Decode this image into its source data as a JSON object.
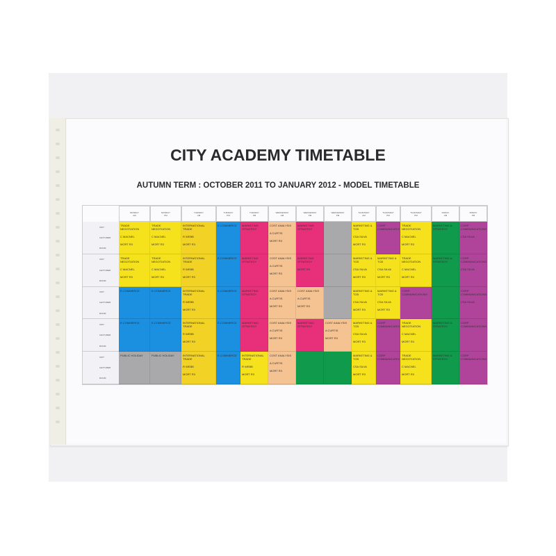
{
  "document": {
    "title": "CITY ACADEMY TIMETABLE",
    "subtitle": "AUTUMN TERM : OCTOBER 2011 TO JANUARY 2012 - MODEL TIMETABLE"
  },
  "colors": {
    "yellow": "#f6e21c",
    "blue": "#1b8fe0",
    "pink": "#e8307a",
    "peach": "#f5c392",
    "grey": "#a9a9ab",
    "green": "#0f9a4c",
    "purple": "#b0449a",
    "yellow2": "#f2d224"
  },
  "headers": [
    {
      "day": "MONDAY",
      "session": "AM"
    },
    {
      "day": "MONDAY",
      "session": "PM"
    },
    {
      "day": "TUESDAY",
      "session": "AM"
    },
    {
      "day": "TUESDAY",
      "session": "PM"
    },
    {
      "day": "TUESDAY",
      "session": "PM"
    },
    {
      "day": "WEDNESDAY",
      "session": "AM"
    },
    {
      "day": "WEDNESDAY",
      "session": "PM"
    },
    {
      "day": "WEDNESDAY",
      "session": "PM"
    },
    {
      "day": "THURSDAY",
      "session": "AM"
    },
    {
      "day": "THURSDAY",
      "session": "PM"
    },
    {
      "day": "THURSDAY",
      "session": "PM"
    },
    {
      "day": "FRIDAY",
      "session": "AM"
    },
    {
      "day": "FRIDAY",
      "session": "PM"
    }
  ],
  "row_labels": {
    "unit": "UNIT",
    "lecturer": "LECTURER",
    "room": "ROOM"
  },
  "rows": [
    {
      "cells": [
        {
          "c": "yellow",
          "s": "TRADE NEGOTIATION",
          "l": "C MACNEL",
          "r": "MORT R3"
        },
        {
          "c": "yellow",
          "s": "TRADE NEGOTIATION",
          "l": "C MACNEL",
          "r": "MORT R3"
        },
        {
          "c": "yellow2",
          "s": "INTERNATIONAL TRADE",
          "l": "R WEBB",
          "r": "MORT R3"
        },
        {
          "c": "blue",
          "s": "E-COMMERCE",
          "l": "",
          "r": ""
        },
        {
          "c": "pink",
          "s": "MARKETING STRATEGY",
          "l": "",
          "r": ""
        },
        {
          "c": "peach",
          "s": "COST ANALYSIS",
          "l": "A CURTIS",
          "r": "MORT R3"
        },
        {
          "c": "pink",
          "s": "MARKETING STRATEGY",
          "l": "",
          "r": ""
        },
        {
          "c": "grey",
          "s": "",
          "l": "",
          "r": ""
        },
        {
          "c": "yellow",
          "s": "MARKETING & TCB",
          "l": "CSA SILVA",
          "r": "MORT R3"
        },
        {
          "c": "purple",
          "s": "CORP COMMUNICATIONS",
          "l": "",
          "r": ""
        },
        {
          "c": "yellow",
          "s": "TRADE NEGOTIATION",
          "l": "C MACNEL",
          "r": "MORT R3"
        },
        {
          "c": "green",
          "s": "MARKETING & STRATEGY",
          "l": "",
          "r": ""
        },
        {
          "c": "purple",
          "s": "CORP COMMUNICATIONS",
          "l": "CSA SILVA",
          "r": ""
        }
      ]
    },
    {
      "cells": [
        {
          "c": "yellow",
          "s": "TRADE NEGOTIATION",
          "l": "C MACNEL",
          "r": "MORT R3"
        },
        {
          "c": "yellow",
          "s": "TRADE NEGOTIATION",
          "l": "C MACNEL",
          "r": "MORT R3"
        },
        {
          "c": "yellow2",
          "s": "INTERNATIONAL TRADE",
          "l": "R WEBB",
          "r": "MORT R3"
        },
        {
          "c": "blue",
          "s": "E-COMMERCE",
          "l": "",
          "r": ""
        },
        {
          "c": "pink",
          "s": "MARKETING STRATEGY",
          "l": "",
          "r": ""
        },
        {
          "c": "peach",
          "s": "COST ANALYSIS",
          "l": "A CURTIS",
          "r": "MORT R3"
        },
        {
          "c": "pink",
          "s": "MARKETING STRATEGY",
          "l": "",
          "r": "MORT R3"
        },
        {
          "c": "grey",
          "s": "",
          "l": "",
          "r": ""
        },
        {
          "c": "yellow",
          "s": "MARKETING & TCB",
          "l": "CSA SILVA",
          "r": "MORT R3"
        },
        {
          "c": "yellow",
          "s": "MARKETING & TCB",
          "l": "CSA SILVA",
          "r": "MORT R3"
        },
        {
          "c": "yellow",
          "s": "TRADE NEGOTIATION",
          "l": "C MACNEL",
          "r": "MORT R3"
        },
        {
          "c": "green",
          "s": "MARKETING & STRATEGY",
          "l": "",
          "r": ""
        },
        {
          "c": "purple",
          "s": "CORP COMMUNICATIONS",
          "l": "CSA SILVA",
          "r": ""
        }
      ]
    },
    {
      "cells": [
        {
          "c": "blue",
          "s": "E-COMMERCE",
          "l": "",
          "r": ""
        },
        {
          "c": "blue",
          "s": "E-COMMERCE",
          "l": "",
          "r": ""
        },
        {
          "c": "yellow2",
          "s": "INTERNATIONAL TRADE",
          "l": "R WEBB",
          "r": "MORT R3"
        },
        {
          "c": "blue",
          "s": "E-COMMERCE",
          "l": "",
          "r": ""
        },
        {
          "c": "pink",
          "s": "MARKETING STRATEGY",
          "l": "",
          "r": ""
        },
        {
          "c": "peach",
          "s": "COST ANALYSIS",
          "l": "A CURTIS",
          "r": "MORT R3"
        },
        {
          "c": "peach",
          "s": "COST ANALYSIS",
          "l": "A CURTIS",
          "r": "MORT R3"
        },
        {
          "c": "grey",
          "s": "",
          "l": "",
          "r": ""
        },
        {
          "c": "yellow",
          "s": "MARKETING & TCB",
          "l": "CSA SILVA",
          "r": "MORT R3"
        },
        {
          "c": "yellow",
          "s": "MARKETING & TCB",
          "l": "CSA SILVA",
          "r": "MORT R3"
        },
        {
          "c": "purple",
          "s": "CORP COMMUNICATIONS",
          "l": "",
          "r": ""
        },
        {
          "c": "green",
          "s": "",
          "l": "",
          "r": ""
        },
        {
          "c": "purple",
          "s": "CORP COMMUNICATIONS",
          "l": "CSA SILVA",
          "r": ""
        }
      ]
    },
    {
      "cells": [
        {
          "c": "blue",
          "s": "E-COMMERCE",
          "l": "",
          "r": ""
        },
        {
          "c": "blue",
          "s": "E-COMMERCE",
          "l": "",
          "r": ""
        },
        {
          "c": "yellow2",
          "s": "INTERNATIONAL TRADE",
          "l": "R WEBB",
          "r": "MORT R3"
        },
        {
          "c": "blue",
          "s": "E-COMMERCE",
          "l": "",
          "r": ""
        },
        {
          "c": "pink",
          "s": "MARKETING STRATEGY",
          "l": "",
          "r": ""
        },
        {
          "c": "peach",
          "s": "COST ANALYSIS",
          "l": "A CURTIS",
          "r": "MORT R3"
        },
        {
          "c": "pink",
          "s": "MARKETING STRATEGY",
          "l": "",
          "r": ""
        },
        {
          "c": "peach",
          "s": "COST ANALYSIS",
          "l": "A CURTIS",
          "r": "MORT R3"
        },
        {
          "c": "yellow",
          "s": "MARKETING & TCB",
          "l": "CSA SILVA",
          "r": "MORT R3"
        },
        {
          "c": "purple",
          "s": "CORP COMMUNICATIONS",
          "l": "",
          "r": ""
        },
        {
          "c": "yellow",
          "s": "TRADE NEGOTIATION",
          "l": "C MACNEL",
          "r": "MORT R3"
        },
        {
          "c": "green",
          "s": "MARKETING & STRATEGY",
          "l": "",
          "r": ""
        },
        {
          "c": "purple",
          "s": "CORP COMMUNICATIONS",
          "l": "",
          "r": ""
        }
      ]
    },
    {
      "cells": [
        {
          "c": "grey",
          "s": "PUBLIC HOLIDAY",
          "l": "",
          "r": ""
        },
        {
          "c": "grey",
          "s": "PUBLIC HOLIDAY",
          "l": "",
          "r": ""
        },
        {
          "c": "yellow2",
          "s": "INTERNATIONAL TRADE",
          "l": "R WEBB",
          "r": "MORT R3"
        },
        {
          "c": "blue",
          "s": "E-COMMERCE",
          "l": "",
          "r": ""
        },
        {
          "c": "yellow",
          "s": "INTERNATIONAL TRADE",
          "l": "R WEBB",
          "r": "MORT R3"
        },
        {
          "c": "peach",
          "s": "COST ANALYSIS",
          "l": "A CURTIS",
          "r": "MORT R3"
        },
        {
          "c": "green",
          "s": "",
          "l": "",
          "r": ""
        },
        {
          "c": "green",
          "s": "",
          "l": "",
          "r": ""
        },
        {
          "c": "yellow",
          "s": "MARKETING & TCB",
          "l": "CSA SILVA",
          "r": "MORT R3"
        },
        {
          "c": "purple",
          "s": "CORP COMMUNICATIONS",
          "l": "",
          "r": ""
        },
        {
          "c": "yellow",
          "s": "TRADE NEGOTIATION",
          "l": "C MACNEL",
          "r": "MORT R3"
        },
        {
          "c": "green",
          "s": "MARKETING & STRATEGY",
          "l": "",
          "r": ""
        },
        {
          "c": "purple",
          "s": "CORP COMMUNICATIONS",
          "l": "",
          "r": ""
        }
      ]
    }
  ]
}
